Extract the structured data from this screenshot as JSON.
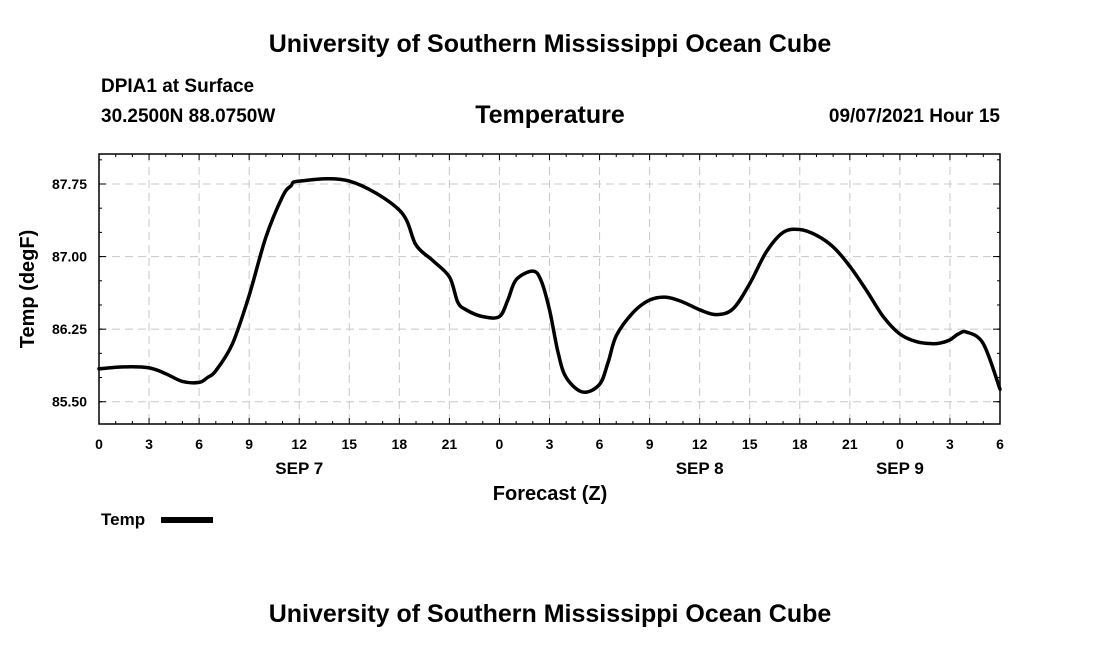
{
  "header": {
    "top_title": "University of Southern Mississippi Ocean Cube",
    "station": "DPIA1 at Surface",
    "coordinates": "30.2500N  88.0750W",
    "chart_title": "Temperature",
    "datetime": "09/07/2021 Hour 15"
  },
  "footer": {
    "bottom_title": "University of Southern Mississippi Ocean Cube"
  },
  "colors": {
    "line": "#000000",
    "grid": "#c8c8c8",
    "background": "#ffffff"
  },
  "chart_data": {
    "type": "line",
    "title": "Temperature",
    "xlabel": "Forecast (Z)",
    "ylabel": "Temp (degF)",
    "xlim": [
      0,
      54
    ],
    "ylim": [
      85.27,
      88.06
    ],
    "grid": true,
    "x_ticks": [
      0,
      3,
      6,
      9,
      12,
      15,
      18,
      21,
      24,
      27,
      30,
      33,
      36,
      39,
      42,
      45,
      48,
      51,
      54
    ],
    "x_tick_labels": [
      "0",
      "3",
      "6",
      "9",
      "12",
      "15",
      "18",
      "21",
      "0",
      "3",
      "6",
      "9",
      "12",
      "15",
      "18",
      "21",
      "0",
      "3",
      "6"
    ],
    "y_ticks": [
      85.5,
      86.25,
      87.0,
      87.75
    ],
    "y_tick_labels": [
      "85.50",
      "86.25",
      "87.00",
      "87.75"
    ],
    "date_labels": [
      {
        "x": 12,
        "label": "SEP 7"
      },
      {
        "x": 36,
        "label": "SEP 8"
      },
      {
        "x": 48,
        "label": "SEP 9"
      }
    ],
    "legend": {
      "placement": "bottom-left",
      "entries": [
        "Temp"
      ]
    },
    "series": [
      {
        "name": "Temp",
        "x": [
          0,
          1.5,
          3,
          4,
          5,
          6,
          6.5,
          7,
          8,
          9,
          10,
          11,
          11.5,
          12,
          15,
          18,
          19,
          20,
          21,
          21.5,
          22,
          23,
          24,
          24.5,
          25,
          26,
          26.5,
          27,
          27.5,
          28,
          29,
          30,
          30.5,
          31,
          32,
          33,
          34,
          35,
          36,
          37,
          38,
          39,
          40,
          41,
          42,
          43,
          44,
          45,
          46,
          47,
          48,
          49,
          50,
          50.5,
          51,
          51.5,
          52,
          53,
          54
        ],
        "values": [
          85.84,
          85.86,
          85.85,
          85.79,
          85.71,
          85.7,
          85.75,
          85.82,
          86.1,
          86.6,
          87.2,
          87.62,
          87.73,
          87.78,
          87.78,
          87.48,
          87.12,
          86.96,
          86.79,
          86.53,
          86.45,
          86.38,
          86.38,
          86.55,
          86.76,
          86.85,
          86.75,
          86.45,
          86.02,
          85.75,
          85.6,
          85.68,
          85.9,
          86.18,
          86.42,
          86.55,
          86.58,
          86.53,
          86.45,
          86.4,
          86.46,
          86.72,
          87.05,
          87.25,
          87.28,
          87.22,
          87.1,
          86.9,
          86.65,
          86.38,
          86.2,
          86.12,
          86.1,
          86.11,
          86.14,
          86.2,
          86.22,
          86.1,
          85.63
        ]
      }
    ]
  }
}
